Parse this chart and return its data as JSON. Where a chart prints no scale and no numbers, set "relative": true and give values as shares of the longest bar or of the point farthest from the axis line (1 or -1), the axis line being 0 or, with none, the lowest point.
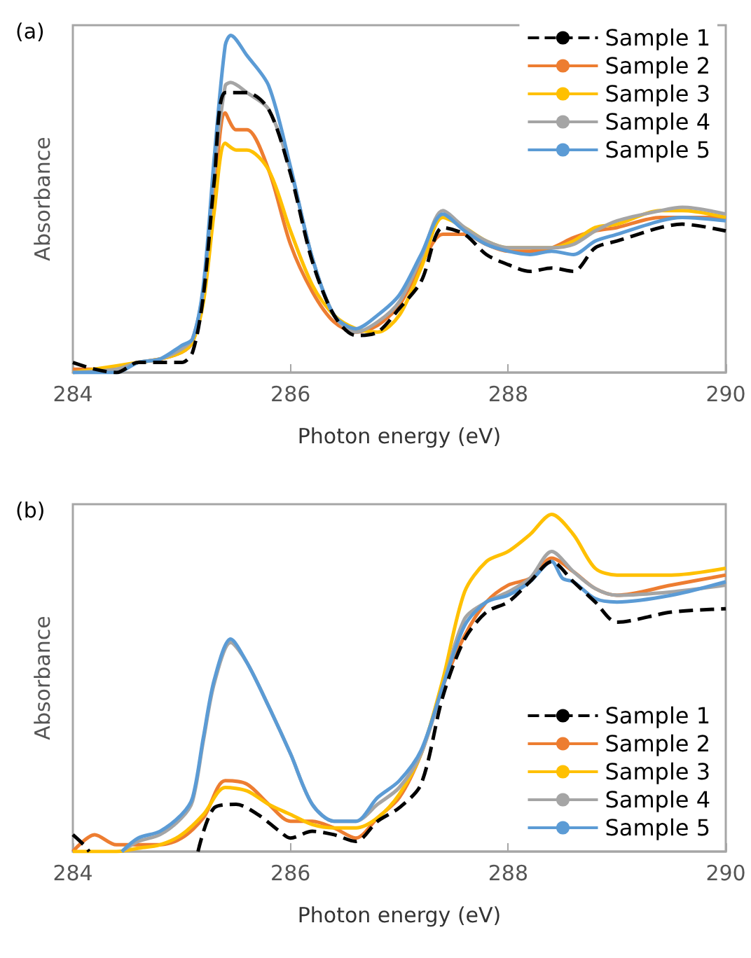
{
  "chart_data": [
    {
      "type": "line",
      "title": "(a)",
      "xlabel": "Photon energy (eV)",
      "ylabel": "Absorbance",
      "relative": true,
      "xlim": [
        284,
        290
      ],
      "xticks": [
        284,
        286,
        288,
        290
      ],
      "grid": false,
      "legend": "top right",
      "marker": "none",
      "series": [
        {
          "name": "Sample 1",
          "color": "#000000",
          "line_style": "dashed",
          "x": [
            284.0,
            284.2,
            284.4,
            284.6,
            284.8,
            285.0,
            285.1,
            285.2,
            285.3,
            285.4,
            285.6,
            285.8,
            286.0,
            286.2,
            286.4,
            286.6,
            286.8,
            287.0,
            287.2,
            287.4,
            287.6,
            287.8,
            288.0,
            288.2,
            288.4,
            288.6,
            288.8,
            289.0,
            289.4,
            289.6,
            290.0
          ],
          "values": [
            0.03,
            0.01,
            0,
            0.03,
            0.03,
            0.03,
            0.06,
            0.23,
            0.57,
            0.83,
            0.83,
            0.78,
            0.59,
            0.33,
            0.17,
            0.11,
            0.12,
            0.19,
            0.27,
            0.43,
            0.41,
            0.35,
            0.32,
            0.3,
            0.31,
            0.3,
            0.37,
            0.39,
            0.43,
            0.44,
            0.42
          ]
        },
        {
          "name": "Sample 2",
          "color": "#ed7d31",
          "line_style": "solid",
          "x": [
            284.0,
            284.4,
            284.6,
            284.8,
            285.0,
            285.1,
            285.2,
            285.3,
            285.4,
            285.5,
            285.6,
            285.8,
            286.0,
            286.2,
            286.4,
            286.6,
            286.8,
            287.0,
            287.2,
            287.4,
            287.6,
            287.8,
            288.0,
            288.2,
            288.4,
            288.6,
            288.8,
            289.0,
            289.4,
            289.6,
            290.0
          ],
          "values": [
            0.01,
            0.01,
            0.03,
            0.04,
            0.06,
            0.09,
            0.23,
            0.53,
            0.77,
            0.72,
            0.72,
            0.6,
            0.38,
            0.24,
            0.15,
            0.12,
            0.14,
            0.2,
            0.32,
            0.41,
            0.41,
            0.38,
            0.36,
            0.36,
            0.37,
            0.4,
            0.42,
            0.43,
            0.46,
            0.46,
            0.46
          ]
        },
        {
          "name": "Sample 3",
          "color": "#ffc000",
          "line_style": "solid",
          "x": [
            284.0,
            284.4,
            284.6,
            284.8,
            285.0,
            285.1,
            285.2,
            285.3,
            285.4,
            285.5,
            285.6,
            285.8,
            286.0,
            286.2,
            286.4,
            286.6,
            286.8,
            287.0,
            287.2,
            287.4,
            287.6,
            287.8,
            288.0,
            288.2,
            288.4,
            288.6,
            288.8,
            289.0,
            289.4,
            289.6,
            290.0
          ],
          "values": [
            0,
            0.02,
            0.03,
            0.04,
            0.06,
            0.09,
            0.21,
            0.48,
            0.68,
            0.66,
            0.66,
            0.6,
            0.42,
            0.26,
            0.17,
            0.13,
            0.12,
            0.17,
            0.31,
            0.46,
            0.43,
            0.39,
            0.37,
            0.37,
            0.37,
            0.39,
            0.43,
            0.44,
            0.48,
            0.48,
            0.46
          ]
        },
        {
          "name": "Sample 4",
          "color": "#a5a5a5",
          "line_style": "solid",
          "x": [
            284.0,
            284.4,
            284.6,
            284.8,
            285.0,
            285.1,
            285.2,
            285.3,
            285.4,
            285.45,
            285.6,
            285.8,
            286.0,
            286.2,
            286.4,
            286.6,
            286.8,
            287.0,
            287.2,
            287.4,
            287.6,
            287.8,
            288.0,
            288.2,
            288.4,
            288.6,
            288.8,
            289.0,
            289.4,
            289.6,
            290.0
          ],
          "values": [
            0,
            0.01,
            0.03,
            0.04,
            0.07,
            0.1,
            0.25,
            0.6,
            0.85,
            0.86,
            0.83,
            0.78,
            0.6,
            0.34,
            0.17,
            0.12,
            0.15,
            0.21,
            0.34,
            0.48,
            0.43,
            0.39,
            0.37,
            0.37,
            0.37,
            0.38,
            0.42,
            0.45,
            0.48,
            0.49,
            0.47
          ]
        },
        {
          "name": "Sample 5",
          "color": "#5b9bd5",
          "line_style": "solid",
          "x": [
            284.0,
            284.4,
            284.6,
            284.8,
            285.0,
            285.1,
            285.2,
            285.3,
            285.4,
            285.45,
            285.6,
            285.8,
            286.0,
            286.2,
            286.4,
            286.6,
            286.8,
            287.0,
            287.2,
            287.4,
            287.6,
            287.8,
            288.0,
            288.2,
            288.4,
            288.6,
            288.8,
            289.0,
            289.4,
            289.6,
            290.0
          ],
          "values": [
            0,
            0,
            0.03,
            0.04,
            0.08,
            0.1,
            0.26,
            0.64,
            0.97,
            1,
            0.94,
            0.85,
            0.61,
            0.34,
            0.17,
            0.13,
            0.17,
            0.23,
            0.35,
            0.47,
            0.42,
            0.38,
            0.36,
            0.35,
            0.36,
            0.35,
            0.39,
            0.41,
            0.45,
            0.46,
            0.45
          ]
        }
      ]
    },
    {
      "type": "line",
      "title": "(b)",
      "xlabel": "Photon energy (eV)",
      "ylabel": "Absorbance",
      "relative": true,
      "xlim": [
        284,
        290
      ],
      "xticks": [
        284,
        286,
        288,
        290
      ],
      "grid": false,
      "legend": "bottom right",
      "marker": "none",
      "series": [
        {
          "name": "Sample 1",
          "color": "#000000",
          "line_style": "dashed",
          "x": [
            284.0,
            284.1,
            284.15,
            285.1,
            285.15,
            285.3,
            285.5,
            285.7,
            285.9,
            286.0,
            286.2,
            286.4,
            286.6,
            286.8,
            287.0,
            287.2,
            287.4,
            287.6,
            287.8,
            288.0,
            288.2,
            288.4,
            288.6,
            288.8,
            289.0,
            289.5,
            290.0
          ],
          "values": [
            0.05,
            0.02,
            0,
            null,
            0,
            0.13,
            0.14,
            0.11,
            0.06,
            0.04,
            0.06,
            0.05,
            0.03,
            0.09,
            0.13,
            0.2,
            0.46,
            0.63,
            0.71,
            0.74,
            0.8,
            0.86,
            0.8,
            0.74,
            0.68,
            0.71,
            0.72
          ]
        },
        {
          "name": "Sample 2",
          "color": "#ed7d31",
          "line_style": "solid",
          "x": [
            284.0,
            284.2,
            284.4,
            284.6,
            284.8,
            285.0,
            285.2,
            285.4,
            285.6,
            285.8,
            286.0,
            286.2,
            286.4,
            286.6,
            286.8,
            287.0,
            287.2,
            287.4,
            287.6,
            287.8,
            288.0,
            288.2,
            288.4,
            288.6,
            288.8,
            289.0,
            289.5,
            290.0
          ],
          "values": [
            0,
            0.05,
            0.02,
            0.02,
            0.02,
            0.04,
            0.1,
            0.21,
            0.2,
            0.14,
            0.09,
            0.09,
            0.07,
            0.04,
            0.1,
            0.16,
            0.29,
            0.49,
            0.64,
            0.74,
            0.79,
            0.81,
            0.87,
            0.83,
            0.78,
            0.76,
            0.79,
            0.82
          ]
        },
        {
          "name": "Sample 3",
          "color": "#ffc000",
          "line_style": "solid",
          "x": [
            284.0,
            284.4,
            284.6,
            284.8,
            285.0,
            285.2,
            285.4,
            285.6,
            285.8,
            286.0,
            286.2,
            286.4,
            286.6,
            286.8,
            287.0,
            287.2,
            287.4,
            287.6,
            287.8,
            288.0,
            288.2,
            288.4,
            288.6,
            288.8,
            289.0,
            289.5,
            290.0
          ],
          "values": [
            0,
            0,
            0.01,
            0.02,
            0.05,
            0.11,
            0.19,
            0.18,
            0.14,
            0.11,
            0.08,
            0.07,
            0.07,
            0.1,
            0.17,
            0.29,
            0.51,
            0.77,
            0.86,
            0.89,
            0.94,
            1,
            0.94,
            0.84,
            0.82,
            0.82,
            0.84
          ]
        },
        {
          "name": "Sample 4",
          "color": "#a5a5a5",
          "line_style": "solid",
          "x": [
            284.45,
            284.6,
            284.8,
            285.0,
            285.1,
            285.2,
            285.3,
            285.45,
            285.6,
            285.8,
            286.0,
            286.2,
            286.4,
            286.6,
            286.8,
            287.0,
            287.2,
            287.4,
            287.6,
            287.8,
            288.0,
            288.2,
            288.4,
            288.6,
            288.8,
            289.0,
            289.5,
            290.0
          ],
          "values": [
            0,
            0.03,
            0.05,
            0.1,
            0.15,
            0.33,
            0.5,
            0.62,
            0.56,
            0.43,
            0.29,
            0.14,
            0.09,
            0.09,
            0.14,
            0.19,
            0.29,
            0.49,
            0.69,
            0.74,
            0.77,
            0.81,
            0.89,
            0.83,
            0.78,
            0.76,
            0.77,
            0.79
          ]
        },
        {
          "name": "Sample 5",
          "color": "#5b9bd5",
          "line_style": "solid",
          "x": [
            284.45,
            284.6,
            284.8,
            285.0,
            285.1,
            285.2,
            285.3,
            285.45,
            285.6,
            285.8,
            286.0,
            286.2,
            286.4,
            286.6,
            286.8,
            287.0,
            287.2,
            287.4,
            287.6,
            287.8,
            288.0,
            288.2,
            288.4,
            288.5,
            288.6,
            288.8,
            289.0,
            289.5,
            290.0
          ],
          "values": [
            0,
            0.04,
            0.06,
            0.11,
            0.16,
            0.34,
            0.51,
            0.63,
            0.56,
            0.43,
            0.29,
            0.14,
            0.09,
            0.09,
            0.16,
            0.21,
            0.3,
            0.49,
            0.67,
            0.74,
            0.76,
            0.8,
            0.86,
            0.81,
            0.8,
            0.75,
            0.74,
            0.76,
            0.8
          ]
        }
      ]
    }
  ]
}
